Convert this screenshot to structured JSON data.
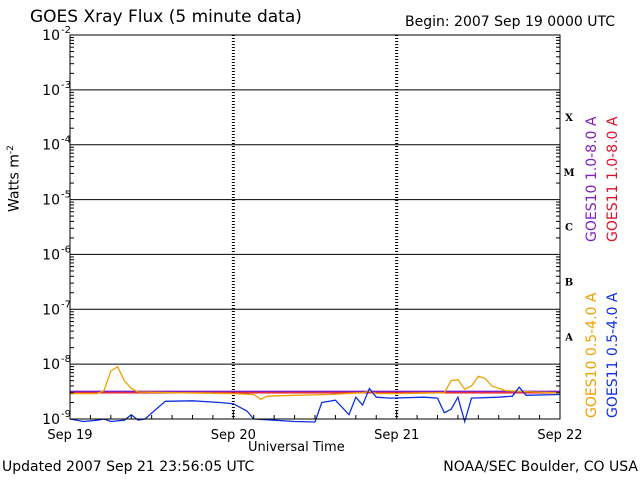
{
  "header": {
    "title": "GOES Xray Flux (5 minute data)",
    "begin": "Begin:  2007 Sep 19 0000 UTC"
  },
  "footer": {
    "updated": "Updated 2007 Sep 21 23:56:05 UTC",
    "credit": "NOAA/SEC Boulder, CO USA"
  },
  "colors": {
    "goes10_long": "#8020c0",
    "goes11_long": "#e0102c",
    "goes10_short": "#f0a000",
    "goes11_short": "#1030e0"
  },
  "chart_data": {
    "type": "line",
    "title": "GOES Xray Flux (5 minute data)",
    "xlabel": "Universal Time",
    "ylabel": "Watts m",
    "ylabel_sup": "-2",
    "yscale": "log",
    "ylim": [
      1e-09,
      0.01
    ],
    "xlim": [
      "2007-09-19T00:00",
      "2007-09-22T00:00"
    ],
    "x_ticks": [
      {
        "x": "2007-09-19T00:00",
        "label": "Sep 19"
      },
      {
        "x": "2007-09-20T00:00",
        "label": "Sep 20"
      },
      {
        "x": "2007-09-21T00:00",
        "label": "Sep 21"
      },
      {
        "x": "2007-09-22T00:00",
        "label": "Sep 22"
      }
    ],
    "y_ticks": [
      {
        "y": 0.01,
        "base": "10",
        "exp": "-2"
      },
      {
        "y": 0.001,
        "base": "10",
        "exp": "-3"
      },
      {
        "y": 0.0001,
        "base": "10",
        "exp": "-4"
      },
      {
        "y": 1e-05,
        "base": "10",
        "exp": "-5"
      },
      {
        "y": 1e-06,
        "base": "10",
        "exp": "-6"
      },
      {
        "y": 1e-07,
        "base": "10",
        "exp": "-7"
      },
      {
        "y": 1e-08,
        "base": "10",
        "exp": "-8"
      },
      {
        "y": 1e-09,
        "base": "10",
        "exp": "-9"
      }
    ],
    "flare_classes": [
      {
        "label": "X",
        "y": 0.00032
      },
      {
        "label": "M",
        "y": 3.2e-05
      },
      {
        "label": "C",
        "y": 3.2e-06
      },
      {
        "label": "B",
        "y": 3.2e-07
      },
      {
        "label": "A",
        "y": 3.2e-08
      }
    ],
    "grid": true,
    "legend_position": "right",
    "series": [
      {
        "name": "GOES10 1.0-8.0 A",
        "color_key": "goes10_long",
        "points": [
          [
            "2007-09-19T00:00",
            3.2e-09
          ],
          [
            "2007-09-19T12:00",
            3.2e-09
          ],
          [
            "2007-09-20T00:00",
            3.2e-09
          ],
          [
            "2007-09-20T12:00",
            3.2e-09
          ],
          [
            "2007-09-21T00:00",
            3.2e-09
          ],
          [
            "2007-09-21T12:00",
            3.2e-09
          ],
          [
            "2007-09-22T00:00",
            3.2e-09
          ]
        ]
      },
      {
        "name": "GOES11 1.0-8.0 A",
        "color_key": "goes11_long",
        "points": [
          [
            "2007-09-19T00:00",
            3e-09
          ],
          [
            "2007-09-19T12:00",
            3e-09
          ],
          [
            "2007-09-20T00:00",
            3e-09
          ],
          [
            "2007-09-20T12:00",
            3e-09
          ],
          [
            "2007-09-21T00:00",
            3e-09
          ],
          [
            "2007-09-21T12:00",
            3e-09
          ],
          [
            "2007-09-22T00:00",
            3e-09
          ]
        ]
      },
      {
        "name": "GOES10 0.5-4.0 A",
        "color_key": "goes10_short",
        "points": [
          [
            "2007-09-19T00:00",
            2.9e-09
          ],
          [
            "2007-09-19T04:00",
            2.9e-09
          ],
          [
            "2007-09-19T05:00",
            3.3e-09
          ],
          [
            "2007-09-19T06:00",
            7.5e-09
          ],
          [
            "2007-09-19T07:00",
            9e-09
          ],
          [
            "2007-09-19T08:00",
            5e-09
          ],
          [
            "2007-09-19T09:00",
            3.6e-09
          ],
          [
            "2007-09-19T10:00",
            3.1e-09
          ],
          [
            "2007-09-19T16:00",
            3e-09
          ],
          [
            "2007-09-20T00:00",
            2.9e-09
          ],
          [
            "2007-09-20T03:00",
            2.8e-09
          ],
          [
            "2007-09-20T04:00",
            2.3e-09
          ],
          [
            "2007-09-20T05:00",
            2.6e-09
          ],
          [
            "2007-09-20T09:00",
            2.7e-09
          ],
          [
            "2007-09-20T14:00",
            2.8e-09
          ],
          [
            "2007-09-20T19:00",
            3e-09
          ],
          [
            "2007-09-20T20:00",
            3.2e-09
          ],
          [
            "2007-09-20T21:00",
            2.9e-09
          ],
          [
            "2007-09-21T00:00",
            2.9e-09
          ],
          [
            "2007-09-21T07:00",
            3e-09
          ],
          [
            "2007-09-21T08:00",
            5e-09
          ],
          [
            "2007-09-21T09:00",
            5.2e-09
          ],
          [
            "2007-09-21T10:00",
            3.5e-09
          ],
          [
            "2007-09-21T11:00",
            4e-09
          ],
          [
            "2007-09-21T12:00",
            6e-09
          ],
          [
            "2007-09-21T13:00",
            5.5e-09
          ],
          [
            "2007-09-21T14:00",
            4e-09
          ],
          [
            "2007-09-21T16:00",
            3.3e-09
          ],
          [
            "2007-09-21T20:00",
            3.1e-09
          ],
          [
            "2007-09-22T00:00",
            3e-09
          ]
        ]
      },
      {
        "name": "GOES11 0.5-4.0 A",
        "color_key": "goes11_short",
        "points": [
          [
            "2007-09-19T00:00",
            1e-09
          ],
          [
            "2007-09-19T02:00",
            9e-10
          ],
          [
            "2007-09-19T04:00",
            9.5e-10
          ],
          [
            "2007-09-19T05:00",
            1e-09
          ],
          [
            "2007-09-19T06:00",
            9e-10
          ],
          [
            "2007-09-19T08:00",
            9.5e-10
          ],
          [
            "2007-09-19T09:00",
            1.2e-09
          ],
          [
            "2007-09-19T10:00",
            9.5e-10
          ],
          [
            "2007-09-19T11:00",
            1e-09
          ],
          [
            "2007-09-19T14:00",
            2.1e-09
          ],
          [
            "2007-09-19T18:00",
            2.15e-09
          ],
          [
            "2007-09-19T22:00",
            2e-09
          ],
          [
            "2007-09-20T00:00",
            1.9e-09
          ],
          [
            "2007-09-20T02:00",
            1.4e-09
          ],
          [
            "2007-09-20T03:00",
            1e-09
          ],
          [
            "2007-09-20T06:00",
            9.5e-10
          ],
          [
            "2007-09-20T09:00",
            9e-10
          ],
          [
            "2007-09-20T12:00",
            8.8e-10
          ],
          [
            "2007-09-20T13:00",
            2e-09
          ],
          [
            "2007-09-20T15:00",
            2.2e-09
          ],
          [
            "2007-09-20T17:00",
            1.2e-09
          ],
          [
            "2007-09-20T18:00",
            2.5e-09
          ],
          [
            "2007-09-20T19:00",
            1.8e-09
          ],
          [
            "2007-09-20T20:00",
            3.6e-09
          ],
          [
            "2007-09-20T21:00",
            2.5e-09
          ],
          [
            "2007-09-20T23:00",
            2.4e-09
          ],
          [
            "2007-09-21T04:00",
            2.5e-09
          ],
          [
            "2007-09-21T06:00",
            2.4e-09
          ],
          [
            "2007-09-21T07:00",
            1.3e-09
          ],
          [
            "2007-09-21T08:00",
            1.5e-09
          ],
          [
            "2007-09-21T09:00",
            2.5e-09
          ],
          [
            "2007-09-21T10:00",
            9e-10
          ],
          [
            "2007-09-21T11:00",
            2.4e-09
          ],
          [
            "2007-09-21T15:00",
            2.5e-09
          ],
          [
            "2007-09-21T17:00",
            2.6e-09
          ],
          [
            "2007-09-21T18:00",
            3.8e-09
          ],
          [
            "2007-09-21T19:00",
            2.7e-09
          ],
          [
            "2007-09-22T00:00",
            2.8e-09
          ]
        ]
      }
    ]
  }
}
